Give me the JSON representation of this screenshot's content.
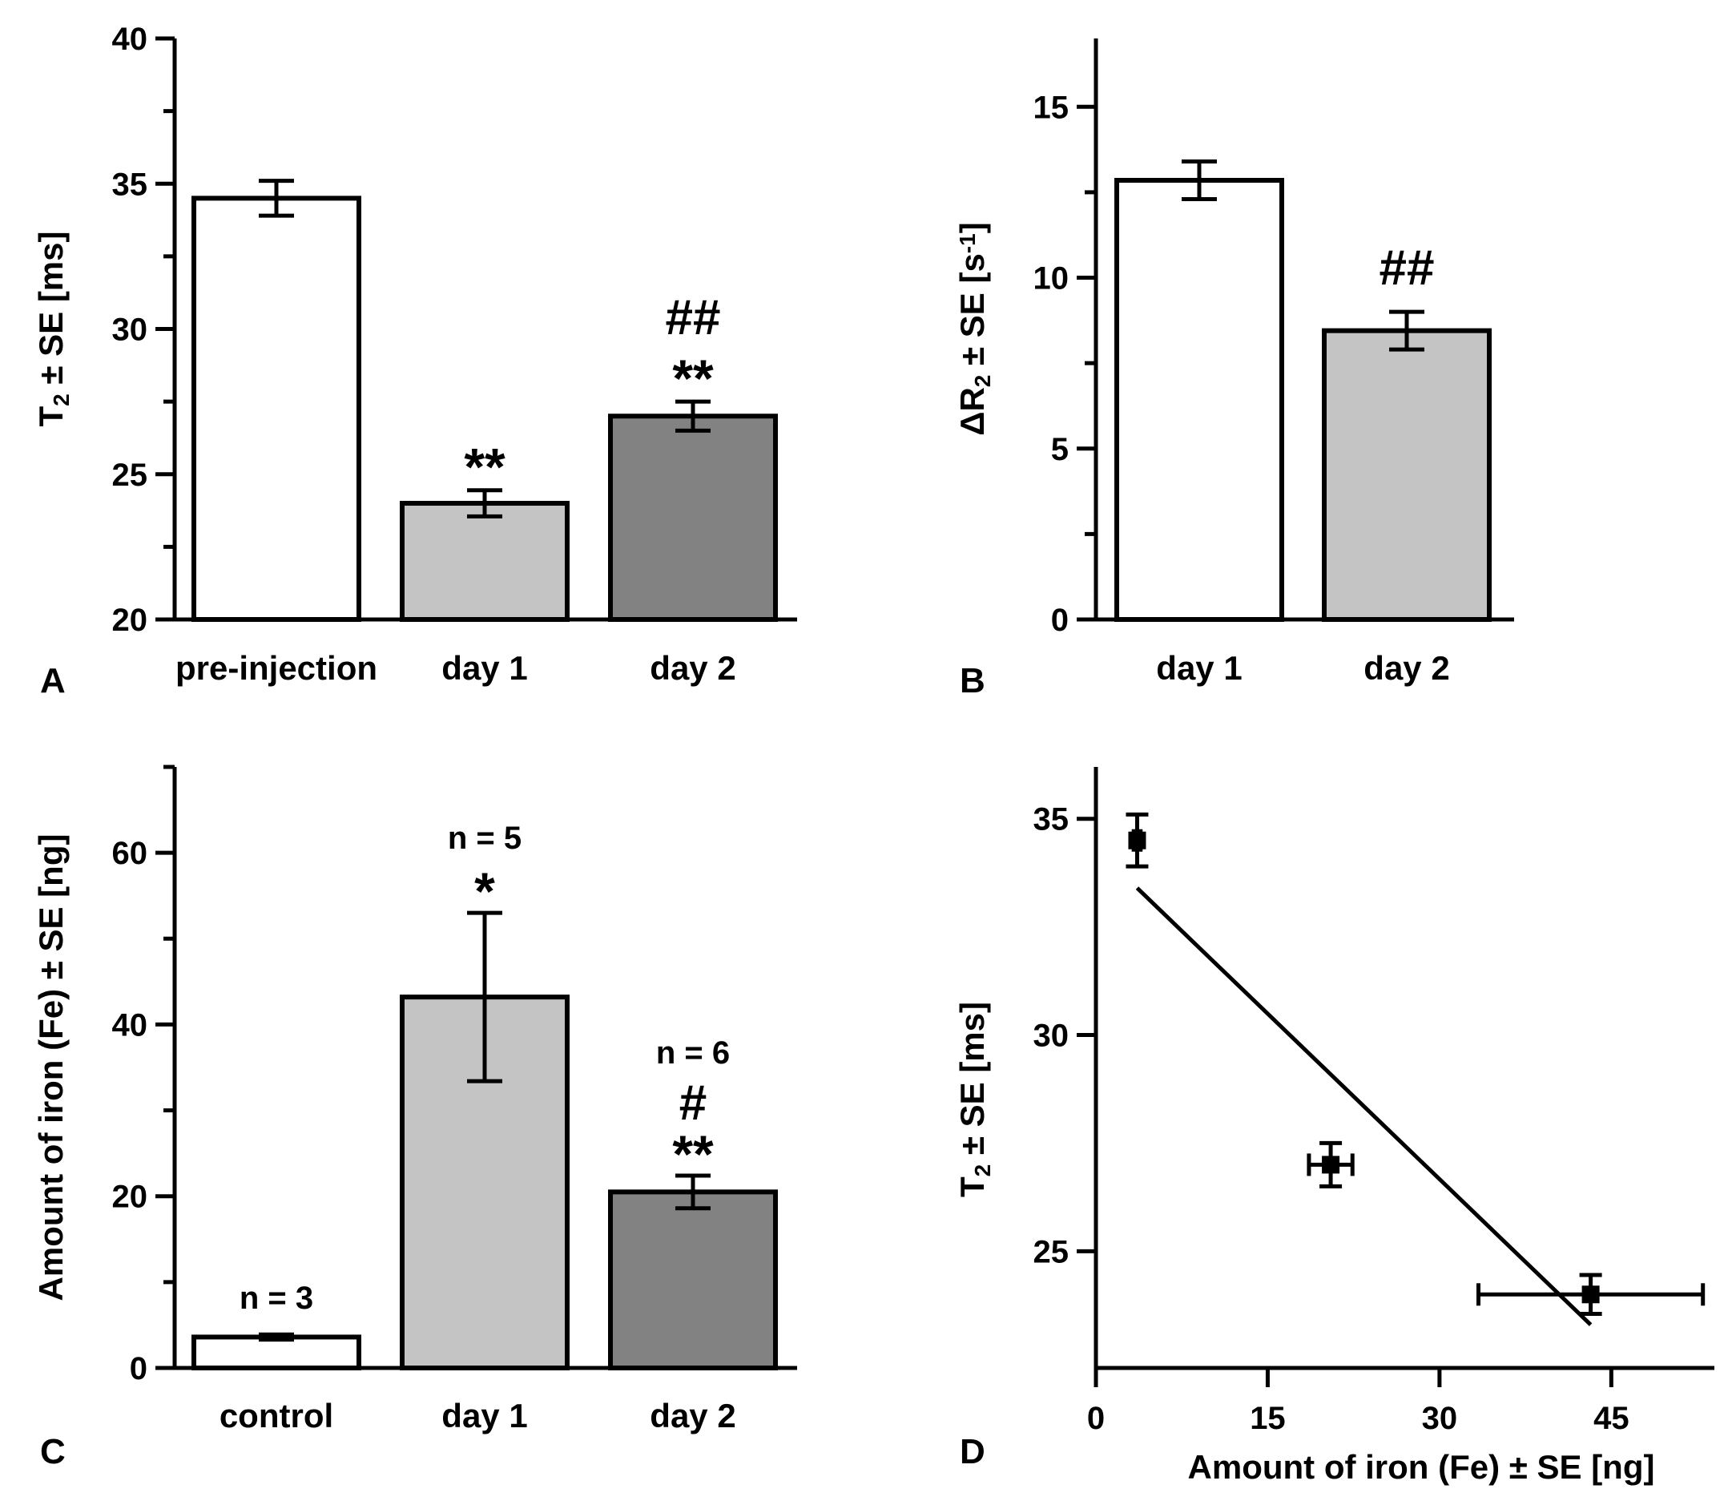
{
  "colors": {
    "bar_white": "#ffffff",
    "bar_light": "#c4c4c4",
    "bar_dark": "#828282",
    "ink": "#000000"
  },
  "chart_data": [
    {
      "panel": "A",
      "type": "bar",
      "categories": [
        "pre-injection",
        "day 1",
        "day 2"
      ],
      "values": [
        34.5,
        24.0,
        27.0
      ],
      "errors": [
        0.6,
        0.45,
        0.5
      ],
      "fills": [
        "bar_white",
        "bar_light",
        "bar_dark"
      ],
      "annotations": [
        [],
        [
          "**"
        ],
        [
          "**",
          "##"
        ]
      ],
      "ylabel_main": "T",
      "ylabel_sub": "2",
      "ylabel_rest": " ± SE [ms]",
      "xlabel": "",
      "ylim": [
        20,
        40
      ],
      "yticks": [
        20,
        25,
        30,
        35,
        40
      ]
    },
    {
      "panel": "B",
      "type": "bar",
      "categories": [
        "day 1",
        "day 2"
      ],
      "values": [
        12.85,
        8.45
      ],
      "errors": [
        0.55,
        0.55
      ],
      "fills": [
        "bar_white",
        "bar_light"
      ],
      "annotations": [
        [],
        [
          "##"
        ]
      ],
      "ylabel_main": "ΔR",
      "ylabel_sub": "2",
      "ylabel_rest": " ± SE [s",
      "ylabel_sup": "-1",
      "ylabel_end": "]",
      "xlabel": "",
      "ylim": [
        0,
        17
      ],
      "yticks": [
        0,
        5,
        10,
        15
      ]
    },
    {
      "panel": "C",
      "type": "bar",
      "categories": [
        "control",
        "day 1",
        "day 2"
      ],
      "values": [
        3.6,
        43.2,
        20.5
      ],
      "errors": [
        0.3,
        9.8,
        1.9
      ],
      "fills": [
        "bar_white",
        "bar_light",
        "bar_dark"
      ],
      "n_labels": [
        "n = 3",
        "n = 5",
        "n = 6"
      ],
      "annotations": [
        [],
        [
          "*"
        ],
        [
          "**",
          "#"
        ]
      ],
      "ylabel": "Amount of iron (Fe) ± SE [ng]",
      "xlabel": "",
      "ylim": [
        0,
        70
      ],
      "yticks": [
        0,
        20,
        40,
        60
      ]
    },
    {
      "panel": "D",
      "type": "scatter",
      "points": [
        {
          "x": 3.6,
          "y": 34.5,
          "xerr": 0.3,
          "yerr": 0.6
        },
        {
          "x": 20.5,
          "y": 27.0,
          "xerr": 1.9,
          "yerr": 0.5
        },
        {
          "x": 43.2,
          "y": 24.0,
          "xerr": 9.8,
          "yerr": 0.45
        }
      ],
      "fit_line": {
        "x": [
          3.6,
          43.2
        ],
        "y": [
          33.4,
          23.3
        ]
      },
      "xlabel": "Amount of iron (Fe) ± SE [ng]",
      "ylabel_main": "T",
      "ylabel_sub": "2",
      "ylabel_rest": " ± SE [ms]",
      "xlim": [
        0,
        54
      ],
      "ylim": [
        22.3,
        36.2
      ],
      "xticks": [
        0,
        15,
        30,
        45
      ],
      "yticks": [
        25,
        30,
        35
      ]
    }
  ]
}
